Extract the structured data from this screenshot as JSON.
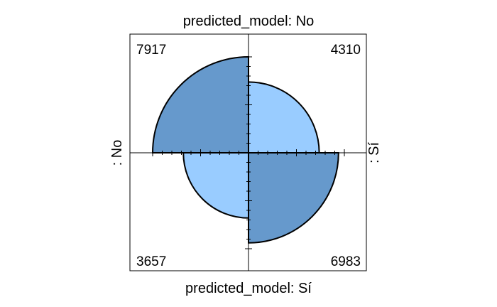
{
  "chart_data": {
    "type": "fourfold",
    "title": "predicted_model: No",
    "bottom_label": "predicted_model: Sí",
    "left_label": ": No",
    "right_label": ": Sí",
    "cells": {
      "top_left": 7917,
      "top_right": 4310,
      "bottom_left": 3657,
      "bottom_right": 6983
    },
    "colors": {
      "dark": "#6699cc",
      "light": "#99ccff",
      "outline": "#000000",
      "frame": "#000000"
    }
  }
}
